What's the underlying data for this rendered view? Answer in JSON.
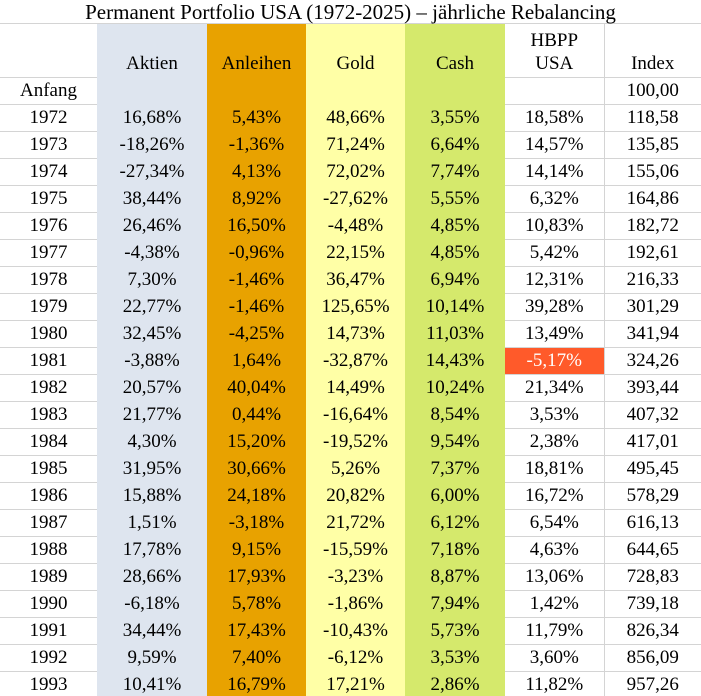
{
  "title": "Permanent Portfolio USA (1972-2025) – jährliche Rebalancing",
  "colors": {
    "aktien": "#dee5ef",
    "anleihen": "#e8a200",
    "gold": "#ffffa6",
    "cash": "#d5e96c",
    "negative_highlight": "#ff5a2a"
  },
  "headers": {
    "aktien": "Aktien",
    "anleihen": "Anleihen",
    "gold": "Gold",
    "cash": "Cash",
    "hbpp_line1": "HBPP",
    "hbpp_line2": "USA",
    "index": "Index"
  },
  "start": {
    "label": "Anfang",
    "index": "100,00"
  },
  "rows": [
    [
      "1972",
      "16,68%",
      "5,43%",
      "48,66%",
      "3,55%",
      "18,58%",
      "118,58"
    ],
    [
      "1973",
      "-18,26%",
      "-1,36%",
      "71,24%",
      "6,64%",
      "14,57%",
      "135,85"
    ],
    [
      "1974",
      "-27,34%",
      "4,13%",
      "72,02%",
      "7,74%",
      "14,14%",
      "155,06"
    ],
    [
      "1975",
      "38,44%",
      "8,92%",
      "-27,62%",
      "5,55%",
      "6,32%",
      "164,86"
    ],
    [
      "1976",
      "26,46%",
      "16,50%",
      "-4,48%",
      "4,85%",
      "10,83%",
      "182,72"
    ],
    [
      "1977",
      "-4,38%",
      "-0,96%",
      "22,15%",
      "4,85%",
      "5,42%",
      "192,61"
    ],
    [
      "1978",
      "7,30%",
      "-1,46%",
      "36,47%",
      "6,94%",
      "12,31%",
      "216,33"
    ],
    [
      "1979",
      "22,77%",
      "-1,46%",
      "125,65%",
      "10,14%",
      "39,28%",
      "301,29"
    ],
    [
      "1980",
      "32,45%",
      "-4,25%",
      "14,73%",
      "11,03%",
      "13,49%",
      "341,94"
    ],
    [
      "1981",
      "-3,88%",
      "1,64%",
      "-32,87%",
      "14,43%",
      "-5,17%",
      "324,26"
    ],
    [
      "1982",
      "20,57%",
      "40,04%",
      "14,49%",
      "10,24%",
      "21,34%",
      "393,44"
    ],
    [
      "1983",
      "21,77%",
      "0,44%",
      "-16,64%",
      "8,54%",
      "3,53%",
      "407,32"
    ],
    [
      "1984",
      "4,30%",
      "15,20%",
      "-19,52%",
      "9,54%",
      "2,38%",
      "417,01"
    ],
    [
      "1985",
      "31,95%",
      "30,66%",
      "5,26%",
      "7,37%",
      "18,81%",
      "495,45"
    ],
    [
      "1986",
      "15,88%",
      "24,18%",
      "20,82%",
      "6,00%",
      "16,72%",
      "578,29"
    ],
    [
      "1987",
      "1,51%",
      "-3,18%",
      "21,72%",
      "6,12%",
      "6,54%",
      "616,13"
    ],
    [
      "1988",
      "17,78%",
      "9,15%",
      "-15,59%",
      "7,18%",
      "4,63%",
      "644,65"
    ],
    [
      "1989",
      "28,66%",
      "17,93%",
      "-3,23%",
      "8,87%",
      "13,06%",
      "728,83"
    ],
    [
      "1990",
      "-6,18%",
      "5,78%",
      "-1,86%",
      "7,94%",
      "1,42%",
      "739,18"
    ],
    [
      "1991",
      "34,44%",
      "17,43%",
      "-10,43%",
      "5,73%",
      "11,79%",
      "826,34"
    ],
    [
      "1992",
      "9,59%",
      "7,40%",
      "-6,12%",
      "3,53%",
      "3,60%",
      "856,09"
    ],
    [
      "1993",
      "10,41%",
      "16,79%",
      "17,21%",
      "2,86%",
      "11,82%",
      "957,26"
    ]
  ]
}
